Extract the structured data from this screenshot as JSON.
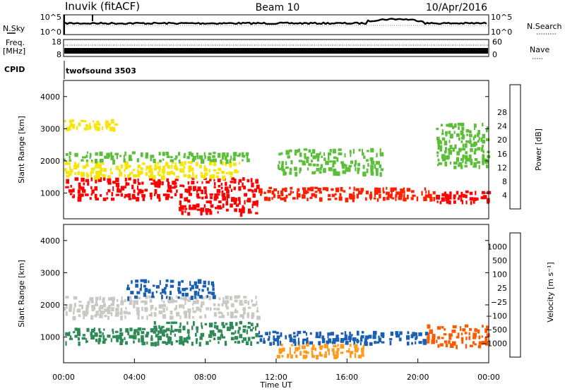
{
  "header": {
    "station": "Inuvik (fitACF)",
    "beam": "Beam 10",
    "date": "10/Apr/2016"
  },
  "noise_panel": {
    "left_label": "N.Sky",
    "right_label": "N.Search",
    "tick_top": "10^5",
    "tick_bottom": "10^0"
  },
  "freq_panel": {
    "left_label_1": "Freq.",
    "left_label_2": "[MHz]",
    "left_ticks": [
      "18",
      "8"
    ],
    "right_label": "Nave",
    "right_ticks": [
      "60",
      "0"
    ]
  },
  "cpid_panel": {
    "label": "CPID",
    "program": "twofsound 3503"
  },
  "colors": {
    "power": [
      "#0000ff",
      "#1a5fb4",
      "#2e8b57",
      "#5bbf3a",
      "#f5e50a",
      "#f5a623",
      "#f26b0f",
      "#ff2000",
      "#ff0000"
    ],
    "velocity": [
      "#ff0000",
      "#ff5a00",
      "#ff9a1a",
      "#f5c96b",
      "#c8c8c4",
      "#8dd14a",
      "#2e8b57",
      "#1a5fb4",
      "#1f3fb8"
    ]
  },
  "chart_data": [
    {
      "type": "heatmap",
      "parameter": "power",
      "ylabel": "Slant Range [km]",
      "ylim": [
        200,
        4500
      ],
      "yticks": [
        "1000",
        "2000",
        "3000",
        "4000"
      ],
      "xlim": [
        0,
        24
      ],
      "colorbar_label": "Power [dB]",
      "colorbar_ticks": [
        "4",
        "8",
        "12",
        "16",
        "20",
        "24",
        "28"
      ],
      "colorbar_range": [
        0,
        30
      ],
      "regions": [
        {
          "t": [
            0.0,
            11.0
          ],
          "r": [
            800,
            1500
          ],
          "level": 27
        },
        {
          "t": [
            0.0,
            10.0
          ],
          "r": [
            1500,
            2000
          ],
          "level": 16
        },
        {
          "t": [
            0.0,
            10.5
          ],
          "r": [
            2000,
            2300
          ],
          "level": 12
        },
        {
          "t": [
            0.0,
            3.0
          ],
          "r": [
            3000,
            3300
          ],
          "level": 14
        },
        {
          "t": [
            6.5,
            11.0
          ],
          "r": [
            350,
            800
          ],
          "level": 28
        },
        {
          "t": [
            11.0,
            21.0
          ],
          "r": [
            800,
            1200
          ],
          "level": 26
        },
        {
          "t": [
            12.0,
            18.0
          ],
          "r": [
            1600,
            2400
          ],
          "level": 10
        },
        {
          "t": [
            21.0,
            24.0
          ],
          "r": [
            700,
            1100
          ],
          "level": 28
        },
        {
          "t": [
            21.0,
            24.0
          ],
          "r": [
            1800,
            3200
          ],
          "level": 13
        }
      ]
    },
    {
      "type": "heatmap",
      "parameter": "velocity",
      "ylabel": "Slant Range [km]",
      "ylim": [
        200,
        4500
      ],
      "yticks": [
        "1000",
        "2000",
        "3000",
        "4000"
      ],
      "xlim": [
        0,
        24
      ],
      "xlabel": "Time UT",
      "xticks": [
        "00:00",
        "04:00",
        "08:00",
        "12:00",
        "16:00",
        "20:00",
        "00:00"
      ],
      "colorbar_label": "Velocity [m s⁻¹]",
      "colorbar_ticks": [
        "1000",
        "500",
        "100",
        "25",
        "−25",
        "−100",
        "−500",
        "−1000"
      ],
      "regions": [
        {
          "t": [
            0.0,
            11.0
          ],
          "r": [
            1600,
            2300
          ],
          "level": -5
        },
        {
          "t": [
            0.0,
            6.0
          ],
          "r": [
            800,
            1300
          ],
          "level": 80
        },
        {
          "t": [
            5.0,
            11.0
          ],
          "r": [
            800,
            1500
          ],
          "level": 300
        },
        {
          "t": [
            11.0,
            20.5
          ],
          "r": [
            800,
            1200
          ],
          "level": 600
        },
        {
          "t": [
            20.5,
            24.0
          ],
          "r": [
            700,
            1400
          ],
          "level": -400
        },
        {
          "t": [
            3.5,
            8.5
          ],
          "r": [
            2200,
            2800
          ],
          "level": 500
        },
        {
          "t": [
            12.0,
            17.0
          ],
          "r": [
            400,
            800
          ],
          "level": -200
        }
      ]
    }
  ]
}
